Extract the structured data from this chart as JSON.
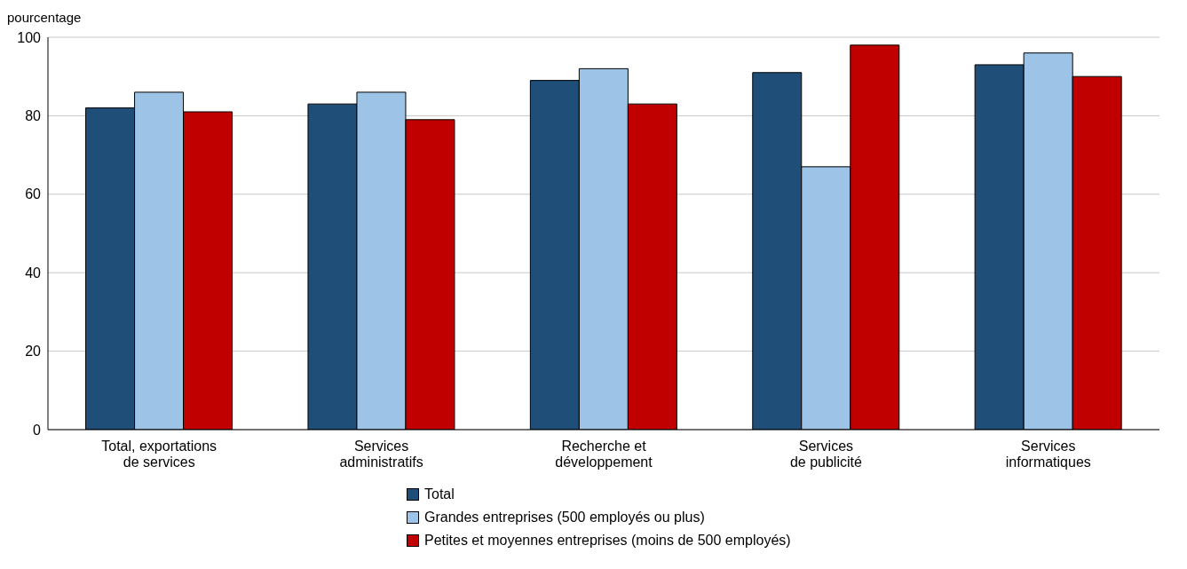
{
  "chart_data": {
    "type": "bar",
    "ylabel": "pourcentage",
    "categories": [
      "Total, exportations\nde services",
      "Services\nadministratifs",
      "Recherche et\ndéveloppement",
      "Services\nde publicité",
      "Services\ninformatiques"
    ],
    "series": [
      {
        "name": "Total",
        "color": "#1f4e79",
        "values": [
          82,
          83,
          89,
          91,
          93
        ]
      },
      {
        "name": "Grandes entreprises (500 employés ou plus)",
        "color": "#9dc3e6",
        "values": [
          86,
          86,
          92,
          67,
          96
        ]
      },
      {
        "name": "Petites et moyennes entreprises (moins de 500 employés)",
        "color": "#c00000",
        "values": [
          81,
          79,
          83,
          98,
          90
        ]
      }
    ],
    "ylim": [
      0,
      100
    ],
    "yticks": [
      0,
      20,
      40,
      60,
      80,
      100
    ],
    "grid": "y",
    "legend": "bottom"
  }
}
